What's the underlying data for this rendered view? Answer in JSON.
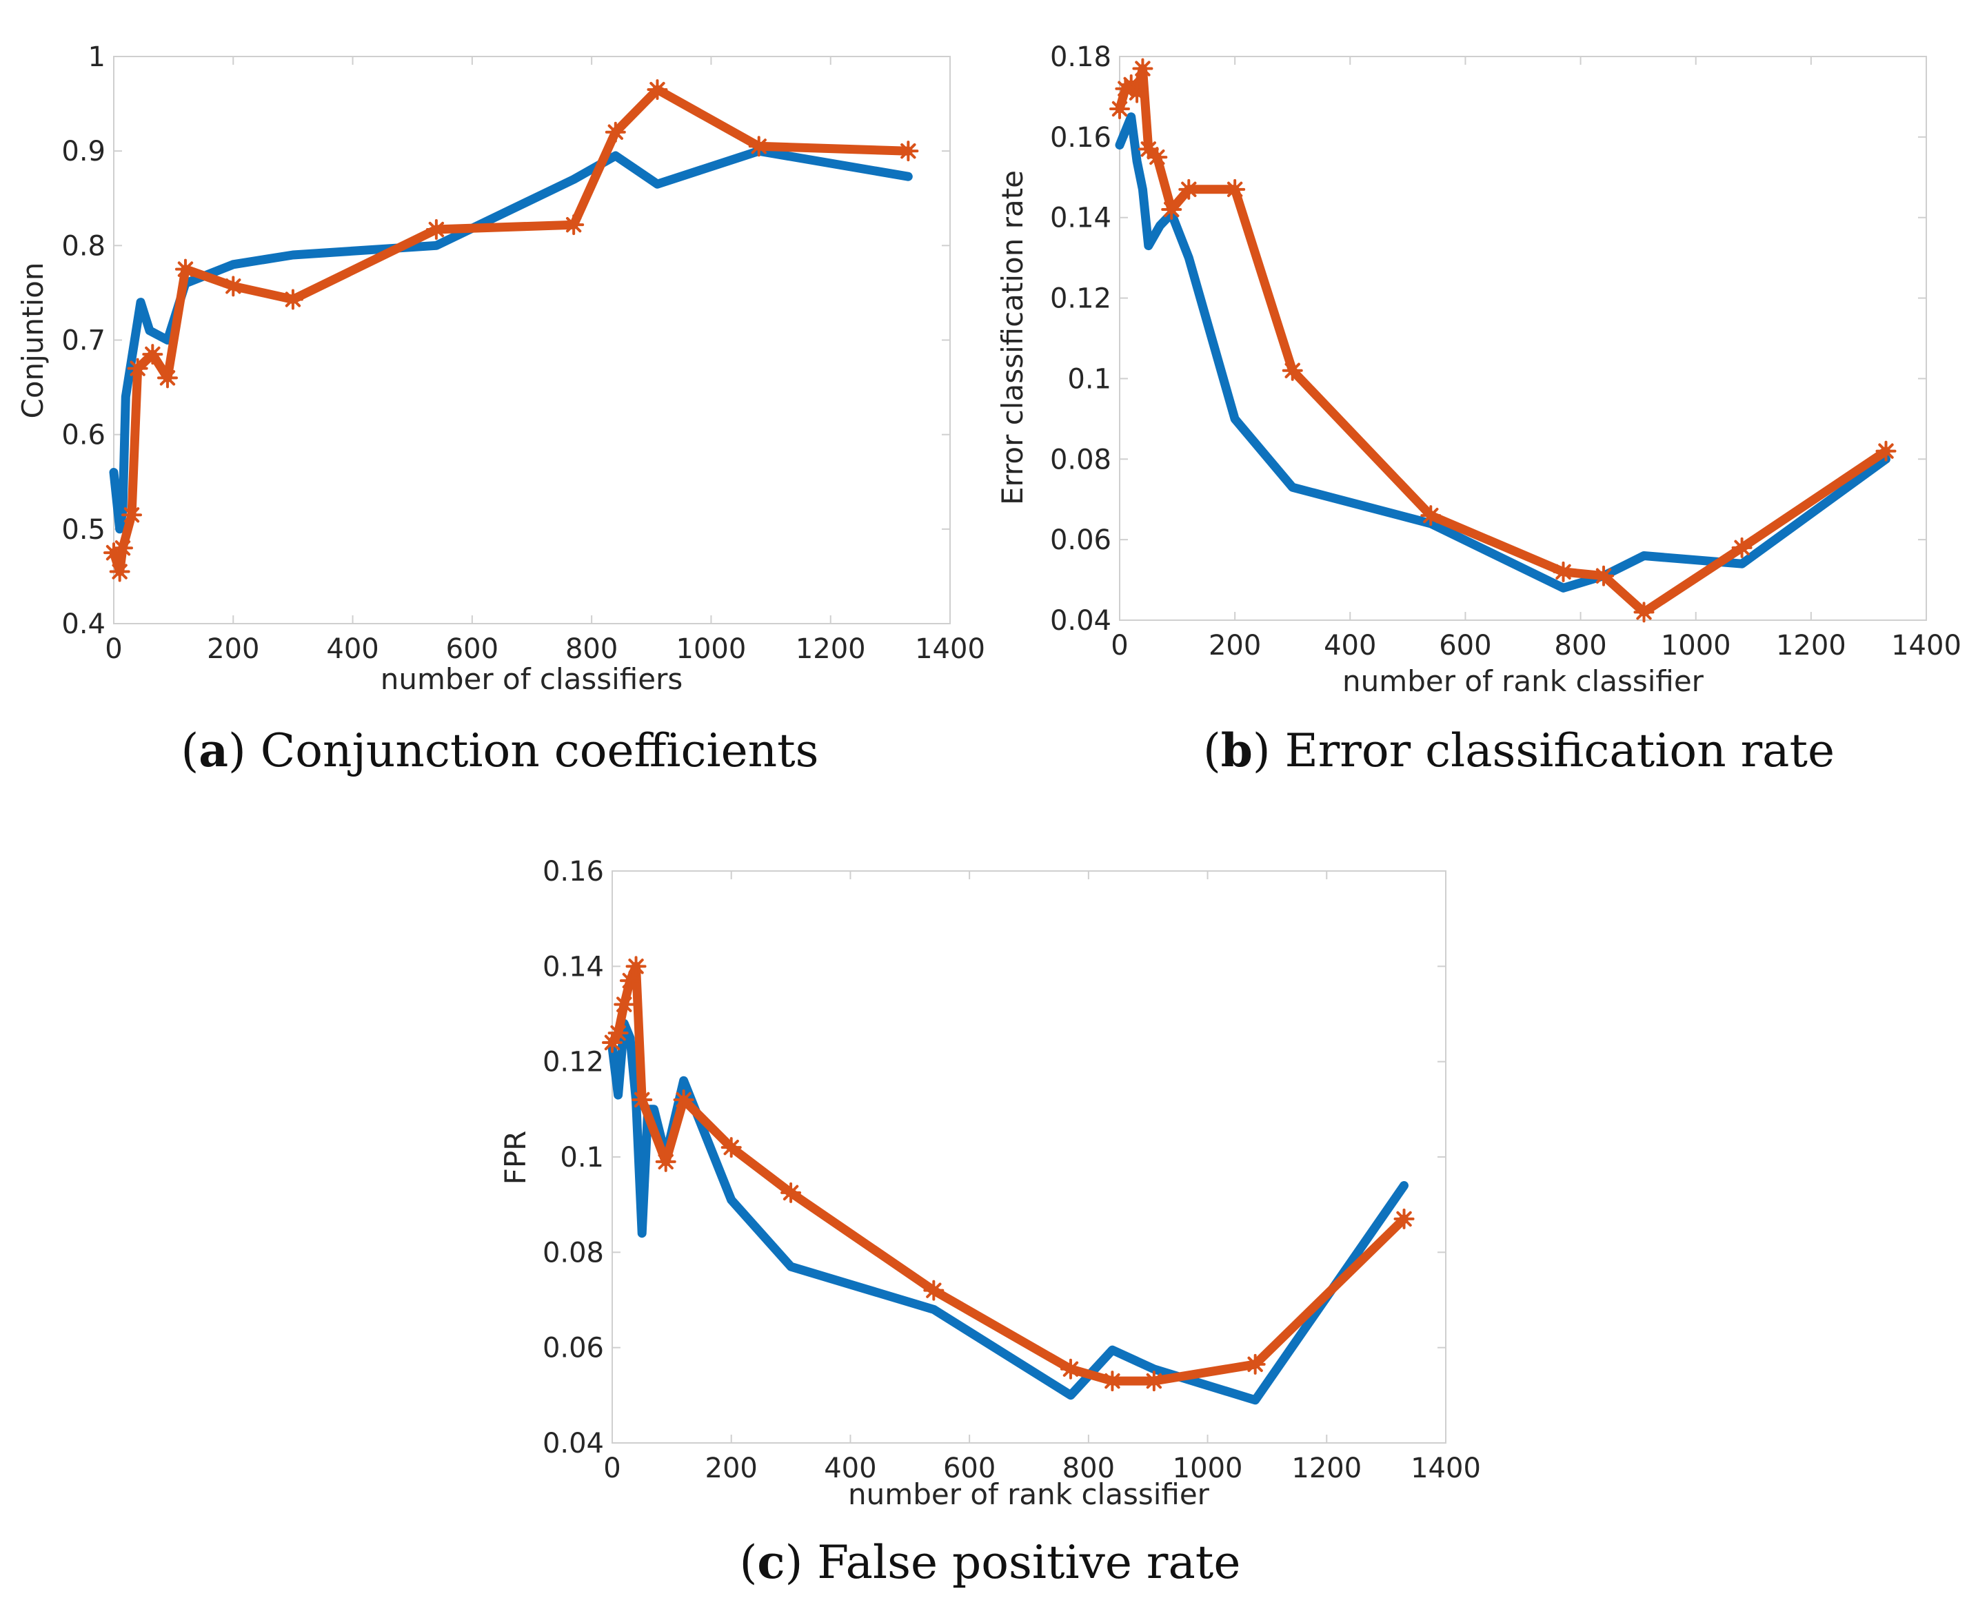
{
  "colors": {
    "series_blue": "#0e72bd",
    "series_orange": "#d95219"
  },
  "chart_data": [
    {
      "id": "a",
      "type": "line",
      "title": "",
      "caption_letter": "a",
      "caption_text": "Conjunction coefficients",
      "xlabel": "number of classifiers",
      "ylabel": "Conjuntion",
      "xlim": [
        0,
        1400
      ],
      "ylim": [
        0.4,
        1.0
      ],
      "xticks": [
        0,
        200,
        400,
        600,
        800,
        1000,
        1200,
        1400
      ],
      "xtick_labels": [
        "0",
        "200",
        "400",
        "600",
        "800",
        "1000",
        "1200",
        "1400"
      ],
      "yticks": [
        0.4,
        0.5,
        0.6,
        0.7,
        0.8,
        0.9,
        1.0
      ],
      "ytick_labels": [
        "0.4",
        "0.5",
        "0.6",
        "0.7",
        "0.8",
        "0.9",
        "1"
      ],
      "series": [
        {
          "name": "blue",
          "marker": false,
          "x": [
            0,
            10,
            15,
            20,
            30,
            45,
            60,
            90,
            120,
            200,
            300,
            540,
            770,
            840,
            910,
            1080,
            1330
          ],
          "y": [
            0.56,
            0.5,
            0.52,
            0.64,
            0.68,
            0.74,
            0.71,
            0.7,
            0.76,
            0.78,
            0.79,
            0.8,
            0.87,
            0.895,
            0.865,
            0.9,
            0.873
          ]
        },
        {
          "name": "orange",
          "marker": true,
          "x": [
            0,
            10,
            15,
            30,
            40,
            65,
            90,
            120,
            200,
            300,
            540,
            770,
            840,
            910,
            1080,
            1330
          ],
          "y": [
            0.475,
            0.455,
            0.48,
            0.515,
            0.67,
            0.685,
            0.66,
            0.775,
            0.757,
            0.743,
            0.817,
            0.822,
            0.92,
            0.965,
            0.905,
            0.9
          ]
        }
      ]
    },
    {
      "id": "b",
      "type": "line",
      "title": "",
      "caption_letter": "b",
      "caption_text": "Error classification rate",
      "xlabel": "number of rank classifier",
      "ylabel": "Error classification rate",
      "xlim": [
        0,
        1400
      ],
      "ylim": [
        0.04,
        0.18
      ],
      "xticks": [
        0,
        200,
        400,
        600,
        800,
        1000,
        1200,
        1400
      ],
      "xtick_labels": [
        "0",
        "200",
        "400",
        "600",
        "800",
        "1000",
        "1200",
        "1400"
      ],
      "yticks": [
        0.04,
        0.06,
        0.08,
        0.1,
        0.12,
        0.14,
        0.16,
        0.18
      ],
      "ytick_labels": [
        "0.04",
        "0.06",
        "0.08",
        "0.1",
        "0.12",
        "0.14",
        "0.16",
        "0.18"
      ],
      "series": [
        {
          "name": "blue",
          "marker": false,
          "x": [
            0,
            20,
            30,
            40,
            50,
            70,
            90,
            120,
            200,
            300,
            540,
            770,
            840,
            910,
            1080,
            1330
          ],
          "y": [
            0.158,
            0.165,
            0.154,
            0.147,
            0.133,
            0.138,
            0.141,
            0.13,
            0.09,
            0.073,
            0.064,
            0.048,
            0.051,
            0.056,
            0.054,
            0.08
          ]
        },
        {
          "name": "orange",
          "marker": true,
          "x": [
            0,
            10,
            20,
            30,
            40,
            50,
            65,
            90,
            120,
            200,
            300,
            540,
            770,
            840,
            910,
            1080,
            1330
          ],
          "y": [
            0.167,
            0.172,
            0.173,
            0.171,
            0.177,
            0.157,
            0.155,
            0.142,
            0.147,
            0.147,
            0.102,
            0.066,
            0.052,
            0.051,
            0.042,
            0.058,
            0.082
          ]
        }
      ]
    },
    {
      "id": "c",
      "type": "line",
      "title": "",
      "caption_letter": "c",
      "caption_text": "False positive rate",
      "xlabel": "number of rank classifier",
      "ylabel": "FPR",
      "xlim": [
        0,
        1400
      ],
      "ylim": [
        0.04,
        0.16
      ],
      "xticks": [
        0,
        200,
        400,
        600,
        800,
        1000,
        1200,
        1400
      ],
      "xtick_labels": [
        "0",
        "200",
        "400",
        "600",
        "800",
        "1000",
        "1200",
        "1400"
      ],
      "yticks": [
        0.04,
        0.06,
        0.08,
        0.1,
        0.12,
        0.14,
        0.16
      ],
      "ytick_labels": [
        "0.04",
        "0.06",
        "0.08",
        "0.1",
        "0.12",
        "0.14",
        "0.16"
      ],
      "series": [
        {
          "name": "blue",
          "marker": false,
          "x": [
            0,
            10,
            20,
            30,
            40,
            50,
            60,
            70,
            90,
            120,
            200,
            300,
            540,
            770,
            840,
            910,
            1080,
            1330
          ],
          "y": [
            0.123,
            0.113,
            0.128,
            0.125,
            0.112,
            0.084,
            0.11,
            0.11,
            0.1,
            0.116,
            0.091,
            0.077,
            0.068,
            0.05,
            0.0595,
            0.0555,
            0.049,
            0.094
          ]
        },
        {
          "name": "orange",
          "marker": true,
          "x": [
            0,
            10,
            20,
            30,
            40,
            50,
            90,
            120,
            200,
            300,
            540,
            770,
            840,
            910,
            1080,
            1330
          ],
          "y": [
            0.124,
            0.126,
            0.132,
            0.137,
            0.14,
            0.112,
            0.099,
            0.112,
            0.102,
            0.0925,
            0.072,
            0.0555,
            0.053,
            0.053,
            0.0565,
            0.087
          ]
        }
      ]
    }
  ]
}
